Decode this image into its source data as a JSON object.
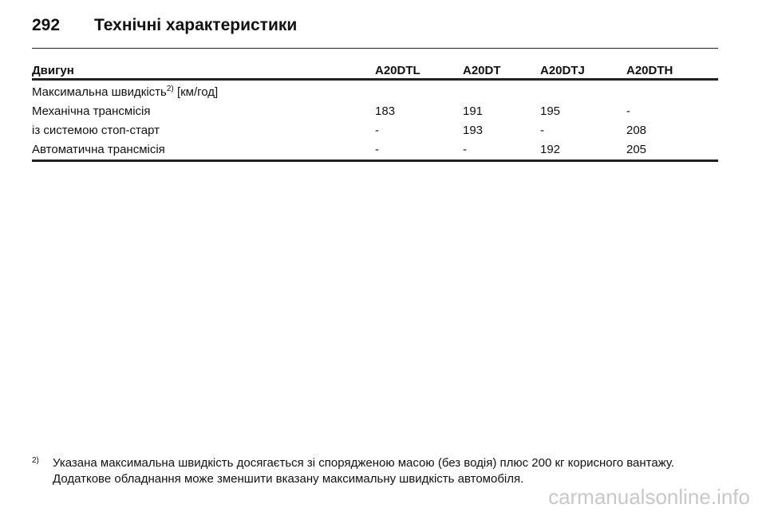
{
  "header": {
    "page_number": "292",
    "title": "Технічні характеристики"
  },
  "table": {
    "columns": [
      "Двигун",
      "A20DTL",
      "A20DT",
      "A20DTJ",
      "A20DTH"
    ],
    "section": {
      "label": "Максимальна швидкість",
      "footnote_ref": "2)",
      "unit": "[км/год]"
    },
    "rows": [
      [
        "Механічна трансмісія",
        "183",
        "191",
        "195",
        "-"
      ],
      [
        "із системою стоп-старт",
        "-",
        "193",
        "-",
        "208"
      ],
      [
        "Автоматична трансмісія",
        "-",
        "-",
        "192",
        "205"
      ]
    ]
  },
  "footnote": {
    "ref": "2)",
    "lines": [
      "Указана максимальна швидкість досягається зі спорядженою масою (без водія) плюс 200 кг корисного вантажу.",
      "Додаткове обладнання може зменшити вказану максимальну швидкість автомобіля."
    ]
  },
  "watermark": "carmanualsonline.info"
}
